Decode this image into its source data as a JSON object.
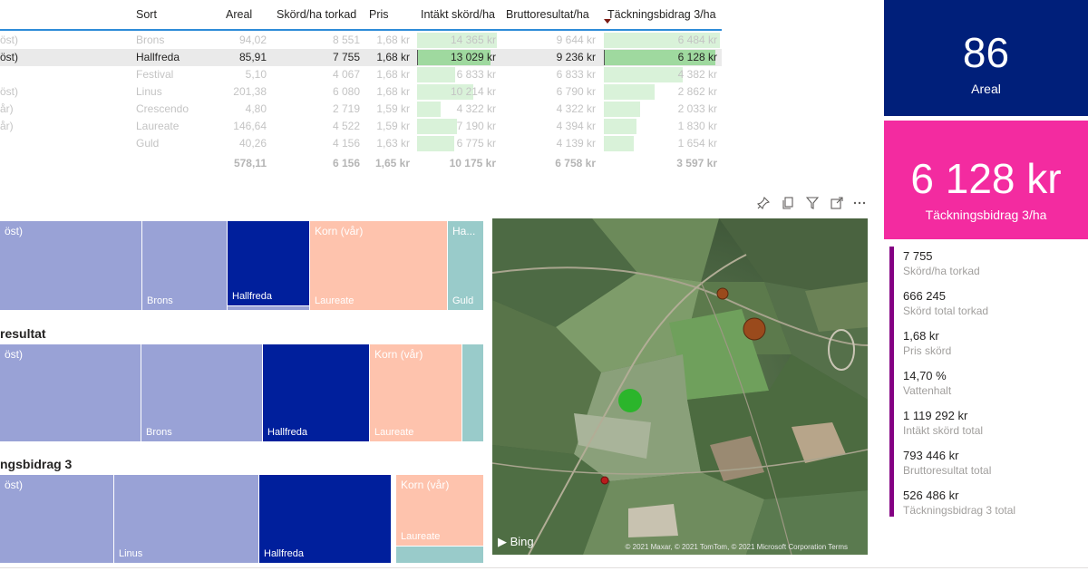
{
  "table": {
    "headers": {
      "sort": "Sort",
      "areal": "Areal",
      "skord": "Skörd/ha torkad",
      "pris": "Pris",
      "intakt": "Intäkt skörd/ha",
      "brutto": "Bruttoresultat/ha",
      "tb": "Täckningsbidrag 3/ha"
    },
    "rows": [
      {
        "type": "öst)",
        "sort": "Brons",
        "areal": "94,02",
        "skord": "8 551",
        "pris": "1,68 kr",
        "intakt": "14 365 kr",
        "intakt_fill": 1.0,
        "brutto": "9 644 kr",
        "tb": "6 484 kr",
        "tb_fill": 1.0
      },
      {
        "type": "öst)",
        "sort": "Hallfreda",
        "areal": "85,91",
        "skord": "7 755",
        "pris": "1,68 kr",
        "intakt": "13 029 kr",
        "intakt_fill": 0.91,
        "brutto": "9 236 kr",
        "tb": "6 128 kr",
        "tb_fill": 0.95
      },
      {
        "type": "",
        "sort": "Festival",
        "areal": "5,10",
        "skord": "4 067",
        "pris": "1,68 kr",
        "intakt": "6 833 kr",
        "intakt_fill": 0.48,
        "brutto": "6 833 kr",
        "tb": "4 382 kr",
        "tb_fill": 0.68
      },
      {
        "type": "öst)",
        "sort": "Linus",
        "areal": "201,38",
        "skord": "6 080",
        "pris": "1,68 kr",
        "intakt": "10 214 kr",
        "intakt_fill": 0.71,
        "brutto": "6 790 kr",
        "tb": "2 862 kr",
        "tb_fill": 0.44
      },
      {
        "type": "år)",
        "sort": "Crescendo",
        "areal": "4,80",
        "skord": "2 719",
        "pris": "1,59 kr",
        "intakt": "4 322 kr",
        "intakt_fill": 0.3,
        "brutto": "4 322 kr",
        "tb": "2 033 kr",
        "tb_fill": 0.31
      },
      {
        "type": "år)",
        "sort": "Laureate",
        "areal": "146,64",
        "skord": "4 522",
        "pris": "1,59 kr",
        "intakt": "7 190 kr",
        "intakt_fill": 0.5,
        "brutto": "4 394 kr",
        "tb": "1 830 kr",
        "tb_fill": 0.28
      },
      {
        "type": "",
        "sort": "Guld",
        "areal": "40,26",
        "skord": "4 156",
        "pris": "1,63 kr",
        "intakt": "6 775 kr",
        "intakt_fill": 0.47,
        "brutto": "4 139 kr",
        "tb": "1 654 kr",
        "tb_fill": 0.26
      }
    ],
    "total": {
      "areal": "578,11",
      "skord": "6 156",
      "pris": "1,65 kr",
      "intakt": "10 175 kr",
      "brutto": "6 758 kr",
      "tb": "3 597 kr"
    }
  },
  "treemap1": {
    "tiles": {
      "t1_top": "öst)",
      "t2_bot": "Brons",
      "t3_bot": "Hallfreda",
      "t4_top": "Korn (vår)",
      "t4_bot": "Laureate",
      "t5_top": "Ha...",
      "t5_bot": "Guld"
    }
  },
  "treemap2": {
    "title": "resultat",
    "tiles": {
      "t1_top": "öst)",
      "t2_bot": "Brons",
      "t3_bot": "Hallfreda",
      "t4_top": "Korn (vår)",
      "t4_bot": "Laureate"
    }
  },
  "treemap3": {
    "title": "ngsbidrag 3",
    "tiles": {
      "t1_top": "öst)",
      "t2_bot": "Linus",
      "t3_bot": "Hallfreda",
      "t4_top": "Korn (vår)",
      "t4_bot": "Laureate"
    }
  },
  "map": {
    "provider": "Bing",
    "copyright": "© 2021 Maxar, © 2021 TomTom, © 2021 Microsoft Corporation Terms",
    "colors": {
      "green": "#2bb52b",
      "brown": "#9a4a1c",
      "red": "#b81c1c"
    }
  },
  "toolbar": {
    "icons": [
      "pin-icon",
      "copy-icon",
      "filter-icon",
      "focus-mode-icon",
      "more-options-icon"
    ]
  },
  "cards": {
    "areal": {
      "value": "86",
      "label": "Areal",
      "color": "#001f7a"
    },
    "tb": {
      "value": "6 128 kr",
      "label": "Täckningsbidrag 3/ha",
      "color": "#f32ba0"
    }
  },
  "kpis": [
    {
      "value": "7 755",
      "label": "Skörd/ha torkad"
    },
    {
      "value": "666 245",
      "label": "Skörd total torkad"
    },
    {
      "value": "1,68 kr",
      "label": "Pris skörd"
    },
    {
      "value": "14,70 %",
      "label": "Vattenhalt"
    },
    {
      "value": "1 119 292 kr",
      "label": "Intäkt skörd total"
    },
    {
      "value": "793 446 kr",
      "label": "Bruttoresultat total"
    },
    {
      "value": "526 486 kr",
      "label": "Täckningsbidrag 3 total"
    }
  ]
}
